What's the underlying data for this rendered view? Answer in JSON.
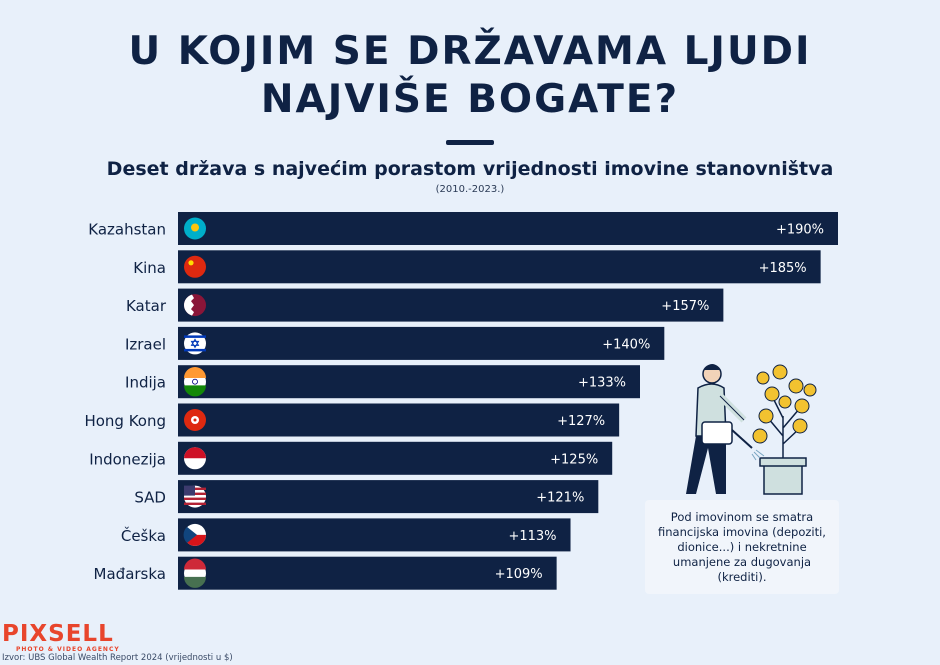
{
  "header": {
    "title_line1": "U KOJIM SE DRŽAVAMA LJUDI",
    "title_line2": "NAJVIŠE BOGATE?",
    "subtitle": "Deset država s najvećim porastom vrijednosti imovine stanovništva",
    "period": "(2010.-2023.)"
  },
  "colors": {
    "background": "#e8f0fa",
    "bar": "#0f2244",
    "text": "#0f2244",
    "brand": "#e8452c"
  },
  "chart_data": {
    "type": "bar",
    "orientation": "horizontal",
    "title": "Deset država s najvećim porastom vrijednosti imovine stanovništva",
    "subtitle": "(2010.-2023.)",
    "categories": [
      "Kazahstan",
      "Kina",
      "Katar",
      "Izrael",
      "Indija",
      "Hong Kong",
      "Indonezija",
      "SAD",
      "Češka",
      "Mađarska"
    ],
    "values": [
      190,
      185,
      157,
      140,
      133,
      127,
      125,
      121,
      113,
      109
    ],
    "value_labels": [
      "+190%",
      "+185%",
      "+157%",
      "+140%",
      "+133%",
      "+127%",
      "+125%",
      "+121%",
      "+113%",
      "+109%"
    ],
    "flag_icons": [
      "flag-kazakhstan-icon",
      "flag-china-icon",
      "flag-qatar-icon",
      "flag-israel-icon",
      "flag-india-icon",
      "flag-hong-kong-icon",
      "flag-indonesia-icon",
      "flag-usa-icon",
      "flag-czechia-icon",
      "flag-hungary-icon"
    ],
    "unit": "%",
    "grid": false,
    "legend": "none"
  },
  "note": {
    "text": "Pod imovinom se smatra financijska imovina (depoziti, dionice...) i nekretnine umanjene za dugovanja (krediti)."
  },
  "footer": {
    "brand": "PIXSELL",
    "brand_sub": "PHOTO & VIDEO AGENCY",
    "source": "Izvor: UBS Global Wealth Report 2024 (vrijednosti u $)"
  }
}
